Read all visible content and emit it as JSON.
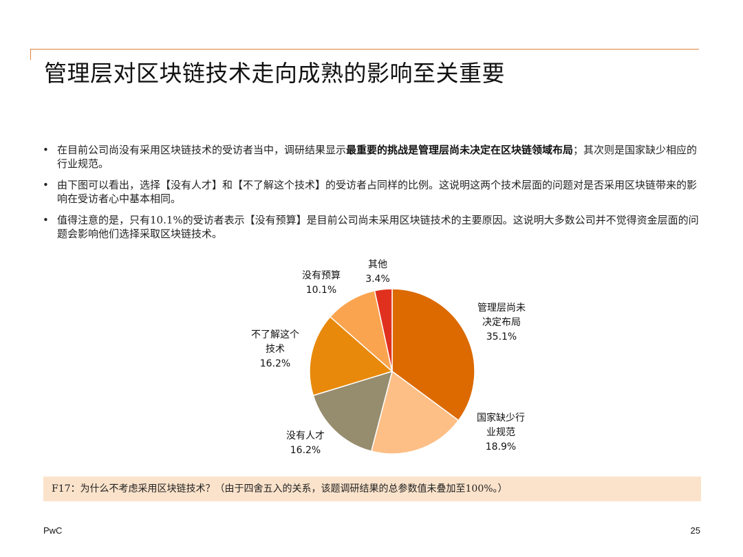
{
  "title": "管理层对区块链技术走向成熟的影响至关重要",
  "bullets": [
    {
      "text_before": "在目前公司尚没有采用区块链技术的受访者当中，调研结果显示",
      "bold": "最重要的挑战是管理层尚未决定在区块链领域布局",
      "text_after": "；其次则是国家缺少相应的行业规范。"
    },
    {
      "text_before": "由下图可以看出，选择【没有人才】和【不了解这个技术】的受访者占同样的比例。这说明这两个技术层面的问题对是否采用区块链带来的影响在受访者心中基本相同。",
      "bold": "",
      "text_after": ""
    },
    {
      "text_before": "值得注意的是，只有10.1%的受访者表示【没有预算】是目前公司尚未采用区块链技术的主要原因。这说明大多数公司并不觉得资金层面的问题会影响他们选择采取区块链技术。",
      "bold": "",
      "text_after": ""
    }
  ],
  "bullet_glyph": "•",
  "chart_data": {
    "type": "pie",
    "start_angle_deg": 0,
    "direction": "clockwise",
    "slices": [
      {
        "label_lines": [
          "管理层尚未",
          "决定布局"
        ],
        "value": 35.1,
        "value_label": "35.1%",
        "color": "#dc6a00"
      },
      {
        "label_lines": [
          "国家缺少行",
          "业规范"
        ],
        "value": 18.9,
        "value_label": "18.9%",
        "color": "#fdbf86"
      },
      {
        "label_lines": [
          "没有人才"
        ],
        "value": 16.2,
        "value_label": "16.2%",
        "color": "#968c6e"
      },
      {
        "label_lines": [
          "不了解这个",
          "技术"
        ],
        "value": 16.2,
        "value_label": "16.2%",
        "color": "#e8890b"
      },
      {
        "label_lines": [
          "没有预算"
        ],
        "value": 10.1,
        "value_label": "10.1%",
        "color": "#fba44f"
      },
      {
        "label_lines": [
          "其他"
        ],
        "value": 3.4,
        "value_label": "3.4%",
        "color": "#e0301e"
      }
    ]
  },
  "note": "F17：为什么不考虑采用区块链技术？（由于四舍五入的关系，该题调研结果的总参数值未叠加至100%。）",
  "footer": {
    "brand": "PwC",
    "page_number": "25"
  },
  "colors": {
    "accent": "#e0803a",
    "note_bg": "#fbe3cb"
  }
}
